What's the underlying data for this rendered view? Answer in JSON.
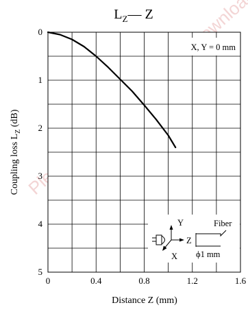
{
  "chart_data": {
    "type": "line",
    "title": {
      "main": "L",
      "sub": "Z",
      "rest": "— Z"
    },
    "xlabel": "Distance  Z  (mm)",
    "ylabel": {
      "main": "Coupling loss  L",
      "sub": "Z",
      "rest": "  (dB)"
    },
    "xlim": [
      0,
      1.6
    ],
    "ylim": [
      0,
      5
    ],
    "y_inverted": true,
    "x_ticks": [
      "0",
      "0.4",
      "0.8",
      "1.2",
      "1.6"
    ],
    "y_ticks": [
      "0",
      "1",
      "2",
      "3",
      "4",
      "5"
    ],
    "grid": true,
    "annotation": "X, Y = 0 mm",
    "series": [
      {
        "x": [
          0,
          0.1,
          0.2,
          0.3,
          0.4,
          0.5,
          0.6,
          0.7,
          0.8,
          0.9,
          1.0,
          1.06
        ],
        "y": [
          0,
          0.05,
          0.15,
          0.3,
          0.5,
          0.73,
          0.98,
          1.23,
          1.52,
          1.82,
          2.15,
          2.4
        ]
      }
    ],
    "inset": {
      "axis_y": "Y",
      "axis_z": "Z",
      "axis_x": "X",
      "fiber_label": "Fiber",
      "diameter_label": "ϕ1 mm"
    }
  },
  "watermark": "Please visit following link to download the latest document"
}
